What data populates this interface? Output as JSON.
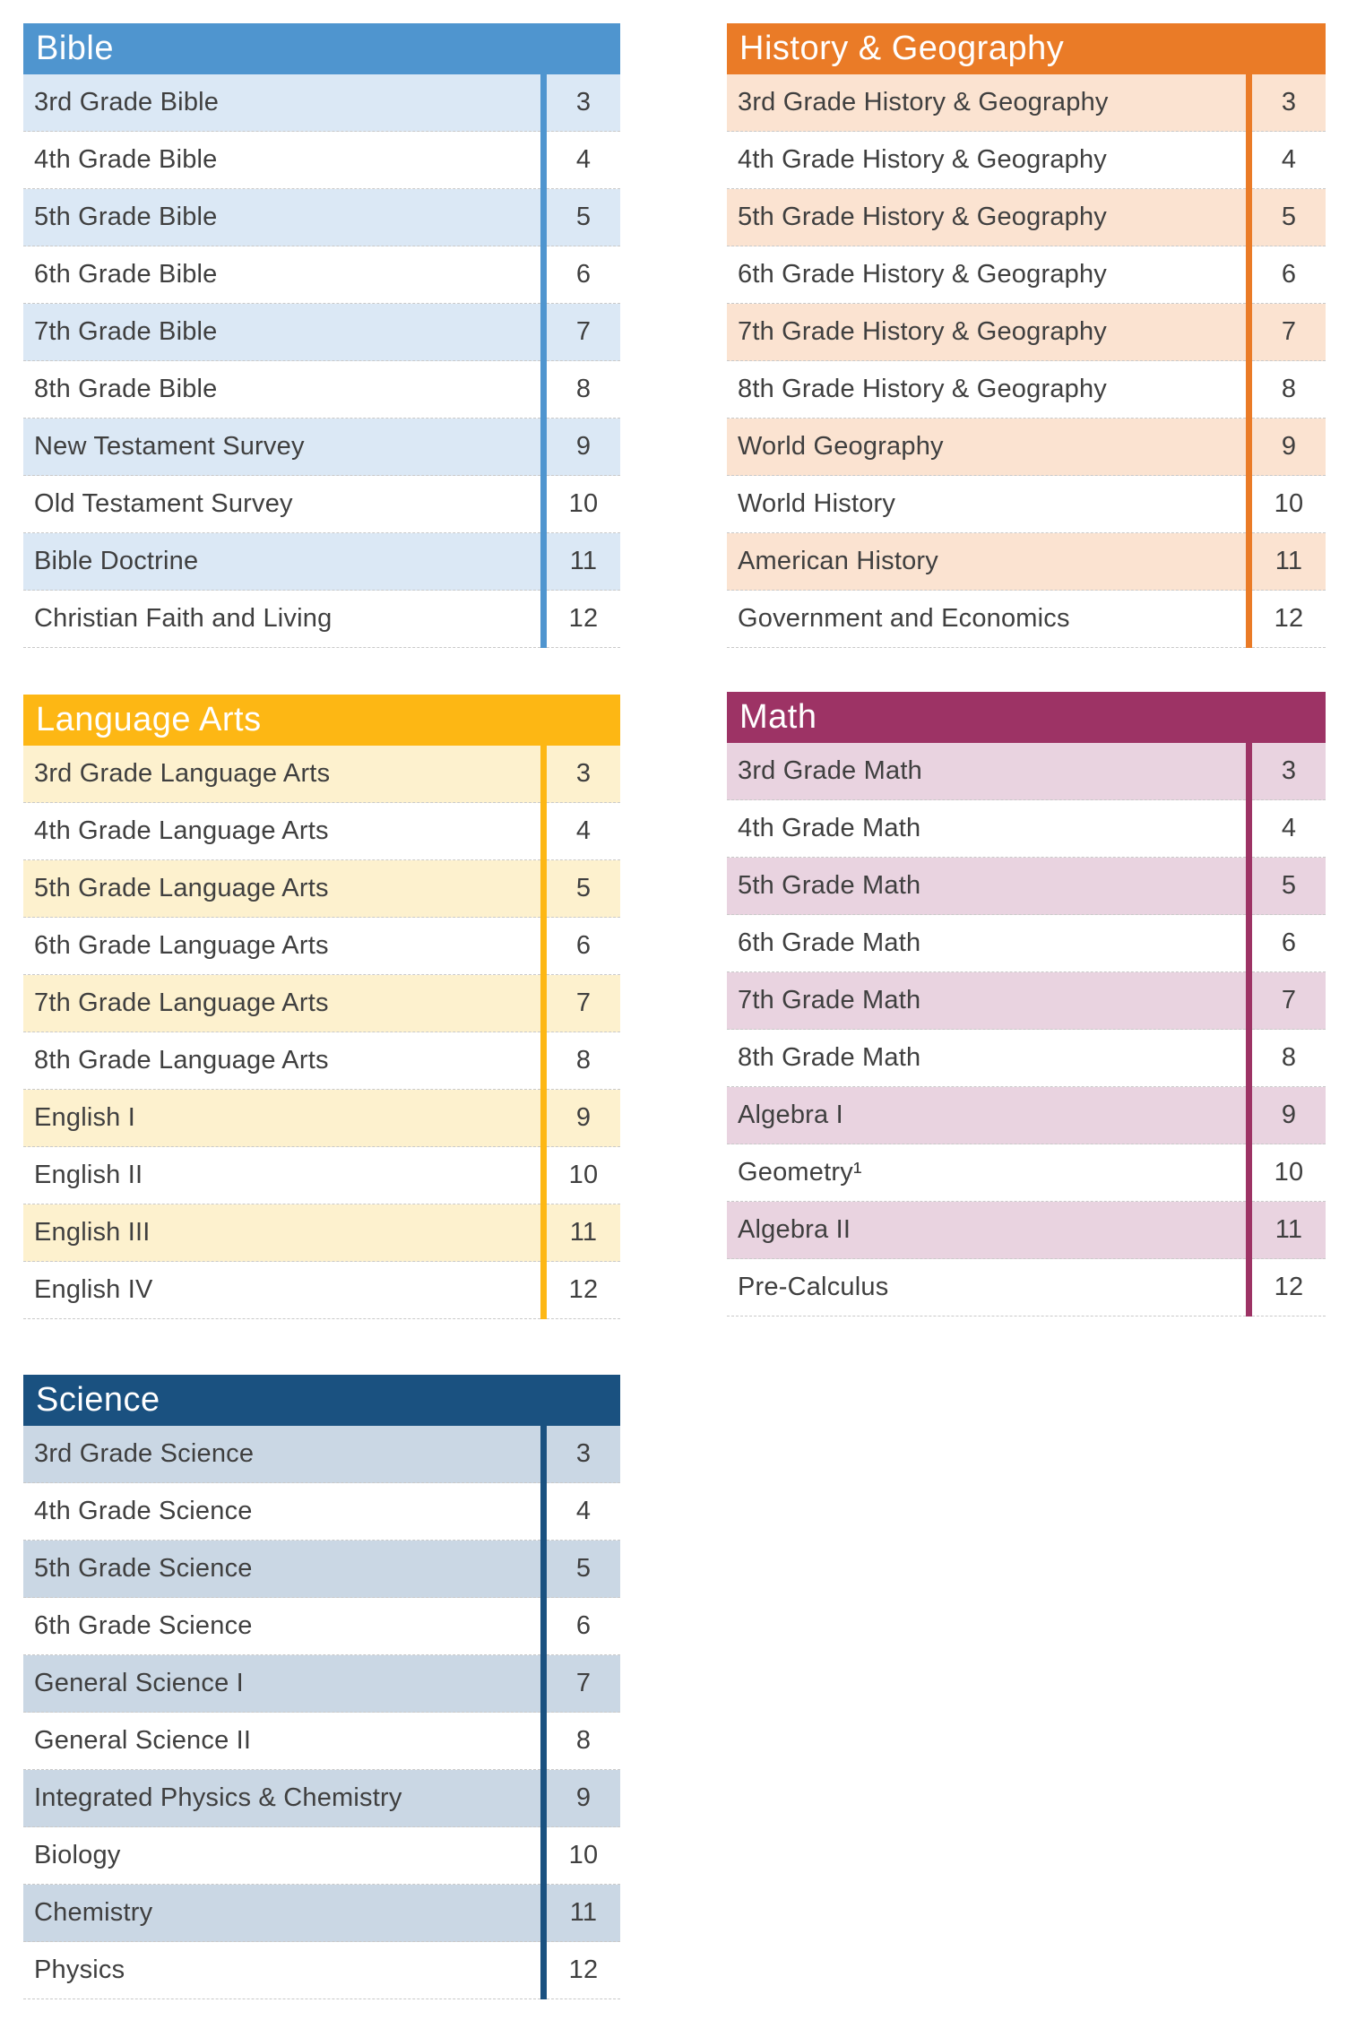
{
  "page": {
    "background": "#ffffff",
    "text_color": "#3f3f3f",
    "row_divider_color": "#c9c9c9"
  },
  "tables": [
    {
      "title": "Bible",
      "accent_color": "#4F95CF",
      "tint_color": "#DBE8F5",
      "rows": [
        {
          "course": "3rd Grade Bible",
          "grade": "3"
        },
        {
          "course": "4th Grade Bible",
          "grade": "4"
        },
        {
          "course": "5th Grade Bible",
          "grade": "5"
        },
        {
          "course": "6th Grade Bible",
          "grade": "6"
        },
        {
          "course": "7th Grade Bible",
          "grade": "7"
        },
        {
          "course": "8th Grade Bible",
          "grade": "8"
        },
        {
          "course": "New Testament Survey",
          "grade": "9"
        },
        {
          "course": "Old Testament Survey",
          "grade": "10"
        },
        {
          "course": "Bible Doctrine",
          "grade": "11"
        },
        {
          "course": "Christian Faith and Living",
          "grade": "12"
        }
      ]
    },
    {
      "title": "History & Geography",
      "accent_color": "#EA7B27",
      "tint_color": "#FBE3D1",
      "rows": [
        {
          "course": "3rd Grade History & Geography",
          "grade": "3"
        },
        {
          "course": "4th Grade History & Geography",
          "grade": "4"
        },
        {
          "course": "5th Grade History & Geography",
          "grade": "5"
        },
        {
          "course": "6th Grade History & Geography",
          "grade": "6"
        },
        {
          "course": "7th Grade History & Geography",
          "grade": "7"
        },
        {
          "course": "8th Grade History & Geography",
          "grade": "8"
        },
        {
          "course": "World Geography",
          "grade": "9"
        },
        {
          "course": "World History",
          "grade": "10"
        },
        {
          "course": "American History",
          "grade": "11"
        },
        {
          "course": "Government and Economics",
          "grade": "12"
        }
      ]
    },
    {
      "title": "Language Arts",
      "accent_color": "#FDB714",
      "tint_color": "#FDF1CE",
      "rows": [
        {
          "course": "3rd Grade Language Arts",
          "grade": "3"
        },
        {
          "course": "4th Grade Language Arts",
          "grade": "4"
        },
        {
          "course": "5th Grade Language Arts",
          "grade": "5"
        },
        {
          "course": "6th Grade Language Arts",
          "grade": "6"
        },
        {
          "course": "7th Grade Language Arts",
          "grade": "7"
        },
        {
          "course": "8th Grade Language Arts",
          "grade": "8"
        },
        {
          "course": "English I",
          "grade": "9"
        },
        {
          "course": "English II",
          "grade": "10"
        },
        {
          "course": "English III",
          "grade": "11"
        },
        {
          "course": "English IV",
          "grade": "12"
        }
      ]
    },
    {
      "title": "Math",
      "accent_color": "#9D3365",
      "tint_color": "#E9D3E0",
      "rows": [
        {
          "course": "3rd Grade Math",
          "grade": "3"
        },
        {
          "course": "4th Grade Math",
          "grade": "4"
        },
        {
          "course": "5th Grade Math",
          "grade": "5"
        },
        {
          "course": "6th Grade Math",
          "grade": "6"
        },
        {
          "course": "7th Grade Math",
          "grade": "7"
        },
        {
          "course": "8th Grade Math",
          "grade": "8"
        },
        {
          "course": "Algebra I",
          "grade": "9"
        },
        {
          "course": "Geometry¹",
          "grade": "10"
        },
        {
          "course": "Algebra II",
          "grade": "11"
        },
        {
          "course": "Pre-Calculus",
          "grade": "12"
        }
      ]
    },
    {
      "title": "Science",
      "accent_color": "#1A5180",
      "tint_color": "#CAD7E4",
      "rows": [
        {
          "course": "3rd Grade Science",
          "grade": "3"
        },
        {
          "course": "4th Grade Science",
          "grade": "4"
        },
        {
          "course": "5th Grade Science",
          "grade": "5"
        },
        {
          "course": "6th Grade Science",
          "grade": "6"
        },
        {
          "course": "General Science I",
          "grade": "7"
        },
        {
          "course": "General Science II",
          "grade": "8"
        },
        {
          "course": "Integrated Physics & Chemistry",
          "grade": "9"
        },
        {
          "course": "Biology",
          "grade": "10"
        },
        {
          "course": "Chemistry",
          "grade": "11"
        },
        {
          "course": "Physics",
          "grade": "12"
        }
      ]
    }
  ]
}
